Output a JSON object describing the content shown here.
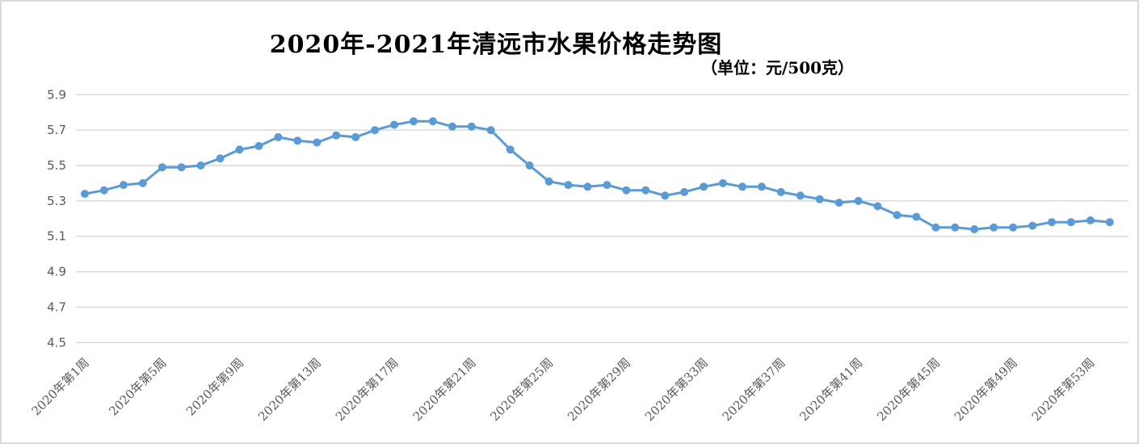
{
  "header": {
    "title": "2020年-2021年清远市水果价格走势图",
    "subtitle": "（单位：元/500克）"
  },
  "chart_data": {
    "type": "line",
    "title": "2020年-2021年清远市水果价格走势图",
    "unit_label": "（单位：元/500克）",
    "xlabel": "",
    "ylabel": "",
    "x_weeks": [
      1,
      2,
      3,
      4,
      5,
      6,
      7,
      8,
      9,
      10,
      11,
      12,
      13,
      14,
      15,
      16,
      17,
      18,
      19,
      20,
      21,
      22,
      23,
      24,
      25,
      26,
      27,
      28,
      29,
      30,
      31,
      32,
      33,
      34,
      35,
      36,
      37,
      38,
      39,
      40,
      41,
      42,
      43,
      44,
      45,
      46,
      47,
      48,
      49,
      50,
      51,
      52,
      53,
      54
    ],
    "series": [
      {
        "name": "水果价格",
        "values": [
          5.34,
          5.36,
          5.39,
          5.4,
          5.49,
          5.49,
          5.5,
          5.54,
          5.59,
          5.61,
          5.66,
          5.64,
          5.63,
          5.67,
          5.66,
          5.7,
          5.73,
          5.75,
          5.75,
          5.72,
          5.72,
          5.7,
          5.59,
          5.5,
          5.41,
          5.39,
          5.38,
          5.39,
          5.36,
          5.36,
          5.33,
          5.35,
          5.38,
          5.4,
          5.38,
          5.38,
          5.35,
          5.33,
          5.31,
          5.29,
          5.3,
          5.27,
          5.22,
          5.21,
          5.15,
          5.15,
          5.14,
          5.15,
          5.15,
          5.16,
          5.18,
          5.18,
          5.19,
          5.18
        ]
      }
    ],
    "xtick_labels": [
      "2020年第1周",
      "2020年第5周",
      "2020年第9周",
      "2020年第13周",
      "2020年第17周",
      "2020年第21周",
      "2020年第25周",
      "2020年第29周",
      "2020年第33周",
      "2020年第37周",
      "2020年第41周",
      "2020年第45周",
      "2020年第49周",
      "2020年第53周"
    ],
    "xtick_every": 4,
    "ylim": [
      4.5,
      5.9
    ],
    "yticks": [
      5.9,
      5.7,
      5.5,
      5.3,
      5.1,
      4.9,
      4.7,
      4.5
    ],
    "grid": true,
    "legend": "none",
    "line_color": "#5b9bd5",
    "marker": "circle",
    "gridline_color": "#d9d9d9",
    "axis_text_color": "#595959"
  }
}
